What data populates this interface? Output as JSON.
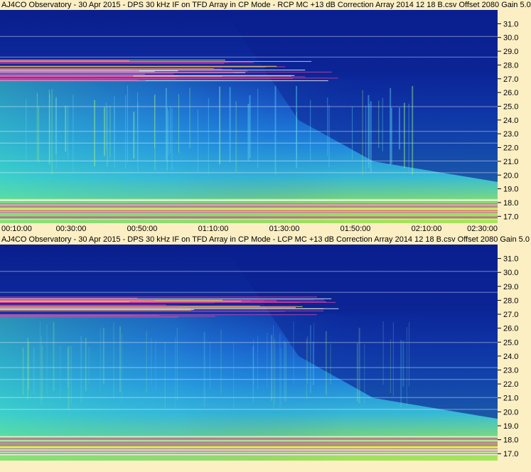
{
  "chart_data": [
    {
      "type": "heatmap",
      "title": "AJ4CO Observatory - 30 Apr 2015 - DPS 30 kHz IF on TFD Array in CP Mode - RCP  MC +13 dB  Correction Array 2014 12 18 B.csv  Offset 2080   Gain 5.0",
      "xlabel": "",
      "ylabel": "",
      "x_ticks": [
        "00:10:00",
        "00:30:00",
        "00:50:00",
        "01:10:00",
        "01:30:00",
        "01:50:00",
        "02:10:00",
        "02:30:00"
      ],
      "y_ticks": [
        "31.0",
        "30.0",
        "29.0",
        "28.0",
        "27.0",
        "26.0",
        "25.0",
        "24.0",
        "23.0",
        "22.0",
        "21.0",
        "20.0",
        "19.0",
        "18.0",
        "17.0"
      ],
      "x_range": [
        "00:10:00",
        "02:30:00"
      ],
      "y_range": [
        16.5,
        32.0
      ]
    },
    {
      "type": "heatmap",
      "title": "AJ4CO Observatory - 30 Apr 2015 - DPS 30 kHz IF on TFD Array in CP Mode - LCP  MC +13 dB  Correction Array 2014 12 18 B.csv  Offset 2080   Gain 5.0",
      "xlabel": "",
      "ylabel": "",
      "x_ticks": [],
      "y_ticks": [
        "31.0",
        "30.0",
        "29.0",
        "28.0",
        "27.0",
        "26.0",
        "25.0",
        "24.0",
        "23.0",
        "22.0",
        "21.0",
        "20.0",
        "19.0",
        "18.0",
        "17.0"
      ],
      "x_range": [
        "00:10:00",
        "02:30:00"
      ],
      "y_range": [
        16.5,
        32.0
      ]
    }
  ],
  "colors": {
    "background": "#fdefc4",
    "deep": "#0a1e8c",
    "mid": "#1a6fe0",
    "cyan": "#30c8e0",
    "green": "#90e060",
    "yellow": "#f0f040",
    "magenta": "#e040a0"
  }
}
